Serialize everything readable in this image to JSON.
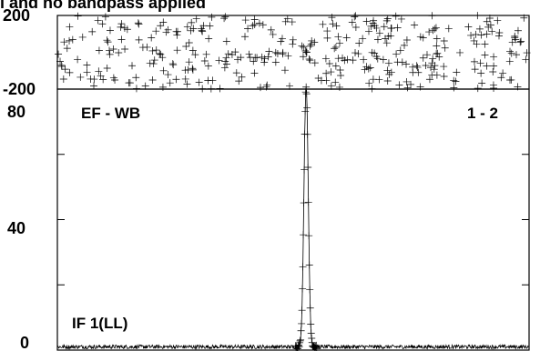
{
  "chart_data": [
    {
      "type": "scatter",
      "panel": "phase",
      "ylim": [
        -200,
        200
      ],
      "yticks": [
        {
          "value": 200,
          "label": "200"
        },
        {
          "value": -200,
          "label": "-200"
        }
      ],
      "grid": false,
      "description_of_points": "Phase values scatter uniformly across the full range from -200 to 200 over all channels, with a narrow converging feature near the center channels where the phase approaches 0.",
      "x_channel_range": [
        0,
        512
      ],
      "center_channel": 270,
      "point_count": 360
    },
    {
      "type": "line",
      "panel": "amplitude",
      "ylim": [
        0,
        80
      ],
      "yticks": [
        {
          "value": 80,
          "label": "80"
        },
        {
          "value": 40,
          "label": "40"
        },
        {
          "value": 0,
          "label": "0"
        }
      ],
      "x_channel_range": [
        0,
        512
      ],
      "peak": {
        "channel": 270,
        "value": 80
      },
      "baseline": 1,
      "annotations": {
        "source": "EF - WB",
        "baseline_pair": "1 - 2",
        "if_label": "IF 1(LL)"
      },
      "grid": false
    }
  ],
  "title_fragment": "l and no bandpass applied"
}
